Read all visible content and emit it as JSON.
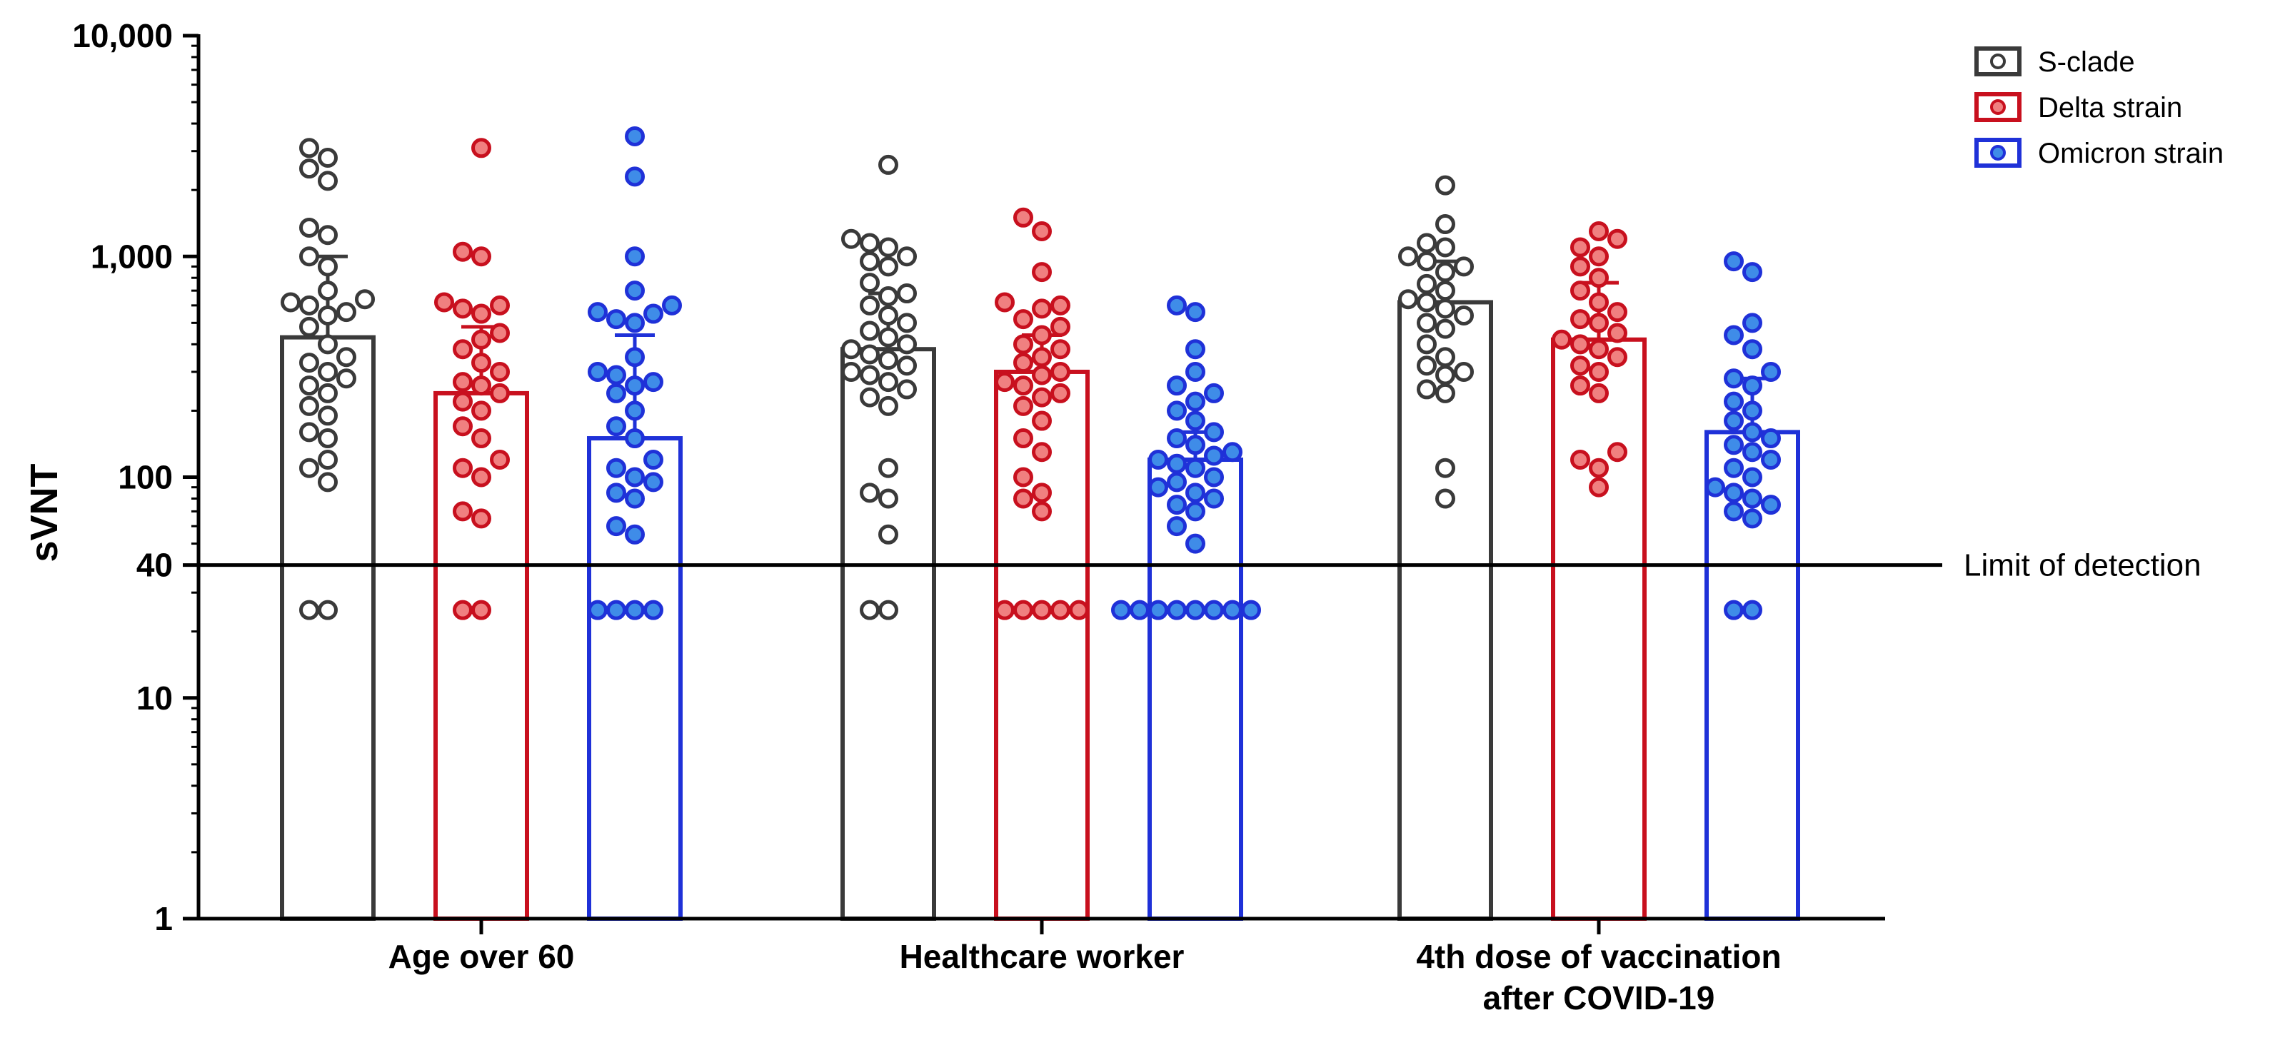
{
  "chart_data": {
    "type": "bar",
    "scale": "log",
    "xlabel": "",
    "ylabel": "sVNT",
    "ylim": [
      1,
      10000
    ],
    "yticks": [
      {
        "value": 1,
        "label": "1"
      },
      {
        "value": 10,
        "label": "10"
      },
      {
        "value": 40,
        "label": "40"
      },
      {
        "value": 100,
        "label": "100"
      },
      {
        "value": 1000,
        "label": "1,000"
      },
      {
        "value": 10000,
        "label": "10,000"
      }
    ],
    "categories": [
      {
        "lines": [
          "Age over 60"
        ]
      },
      {
        "lines": [
          "Healthcare worker"
        ]
      },
      {
        "lines": [
          "4th dose of vaccination",
          "after COVID-19"
        ]
      }
    ],
    "reference_line": {
      "value": 40,
      "label": "Limit of detection"
    },
    "legend_position": "top-right",
    "series": [
      {
        "name": "S-clade",
        "color": "#3a3a3a",
        "fill": "#ffffff",
        "values": [
          430,
          380,
          620
        ],
        "error_upper": [
          1000,
          680,
          950
        ],
        "points": [
          [
            25,
            25,
            95,
            110,
            120,
            150,
            160,
            190,
            210,
            240,
            260,
            280,
            300,
            330,
            350,
            400,
            480,
            540,
            560,
            600,
            620,
            640,
            700,
            900,
            1000,
            1250,
            1350,
            2200,
            2500,
            2800,
            3100
          ],
          [
            25,
            25,
            55,
            80,
            85,
            110,
            210,
            230,
            250,
            270,
            290,
            300,
            320,
            340,
            360,
            380,
            400,
            430,
            460,
            500,
            540,
            600,
            660,
            680,
            760,
            900,
            950,
            1000,
            1100,
            1150,
            1200,
            2600
          ],
          [
            80,
            110,
            240,
            250,
            290,
            300,
            320,
            350,
            400,
            470,
            500,
            540,
            580,
            620,
            640,
            700,
            750,
            850,
            900,
            950,
            1000,
            1100,
            1150,
            1400,
            2100
          ]
        ]
      },
      {
        "name": "Delta strain",
        "color": "#c8101e",
        "fill": "#f08080",
        "values": [
          240,
          300,
          420
        ],
        "error_upper": [
          480,
          440,
          760
        ],
        "points": [
          [
            25,
            25,
            65,
            70,
            100,
            110,
            120,
            150,
            170,
            200,
            220,
            240,
            260,
            270,
            300,
            330,
            380,
            420,
            450,
            550,
            580,
            600,
            620,
            1000,
            1050,
            3100
          ],
          [
            25,
            25,
            25,
            25,
            25,
            70,
            80,
            85,
            100,
            130,
            150,
            180,
            210,
            230,
            240,
            260,
            270,
            290,
            300,
            330,
            350,
            380,
            400,
            440,
            480,
            520,
            580,
            600,
            620,
            850,
            1300,
            1500
          ],
          [
            90,
            110,
            120,
            130,
            240,
            260,
            300,
            320,
            350,
            380,
            400,
            420,
            450,
            500,
            520,
            560,
            620,
            700,
            800,
            900,
            1000,
            1100,
            1200,
            1300
          ]
        ]
      },
      {
        "name": "Omicron strain",
        "color": "#1f31d8",
        "fill": "#3f8ce8",
        "values": [
          150,
          120,
          160
        ],
        "error_upper": [
          440,
          160,
          280
        ],
        "points": [
          [
            25,
            25,
            25,
            25,
            55,
            60,
            80,
            85,
            95,
            100,
            110,
            120,
            150,
            170,
            200,
            240,
            260,
            270,
            290,
            300,
            350,
            500,
            520,
            550,
            560,
            600,
            700,
            1000,
            2300,
            3500
          ],
          [
            25,
            25,
            25,
            25,
            25,
            25,
            25,
            25,
            50,
            60,
            70,
            75,
            80,
            85,
            90,
            95,
            100,
            110,
            115,
            120,
            125,
            130,
            140,
            150,
            160,
            180,
            200,
            220,
            240,
            260,
            300,
            380,
            560,
            600
          ],
          [
            25,
            25,
            65,
            70,
            75,
            80,
            85,
            90,
            100,
            110,
            120,
            130,
            140,
            150,
            160,
            180,
            200,
            220,
            260,
            280,
            300,
            380,
            440,
            500,
            850,
            950
          ]
        ]
      }
    ]
  }
}
